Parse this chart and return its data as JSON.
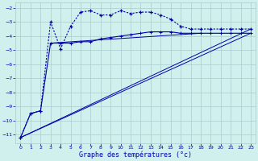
{
  "bg_color": "#d0f0ee",
  "grid_color": "#aacccc",
  "line_color": "#0000aa",
  "xlabel": "Graphe des températures (°c)",
  "xlim": [
    -0.5,
    23.5
  ],
  "ylim": [
    -11.6,
    -1.6
  ],
  "yticks": [
    -11,
    -10,
    -9,
    -8,
    -7,
    -6,
    -5,
    -4,
    -3,
    -2
  ],
  "xticks": [
    0,
    1,
    2,
    3,
    4,
    5,
    6,
    7,
    8,
    9,
    10,
    11,
    12,
    13,
    14,
    15,
    16,
    17,
    18,
    19,
    20,
    21,
    22,
    23
  ],
  "line1_x": [
    0,
    1,
    2,
    3,
    4,
    5,
    6,
    7,
    8,
    9,
    10,
    11,
    12,
    13,
    14,
    15,
    16,
    17,
    18,
    19,
    20,
    21,
    22,
    23
  ],
  "line1_y": [
    -11.2,
    -9.5,
    -9.3,
    -3.0,
    -4.9,
    -3.3,
    -2.3,
    -2.2,
    -2.5,
    -2.5,
    -2.2,
    -2.4,
    -2.3,
    -2.3,
    -2.5,
    -2.8,
    -3.3,
    -3.5,
    -3.5,
    -3.5,
    -3.5,
    -3.5,
    -3.5,
    -3.5
  ],
  "line2_x": [
    0,
    1,
    2,
    3,
    4,
    5,
    6,
    7,
    8,
    9,
    10,
    11,
    12,
    13,
    14,
    15,
    16,
    17,
    18,
    19,
    20,
    21,
    22,
    23
  ],
  "line2_y": [
    -11.2,
    -9.5,
    -9.3,
    -4.5,
    -4.5,
    -4.5,
    -4.4,
    -4.4,
    -4.2,
    -4.1,
    -4.0,
    -3.9,
    -3.8,
    -3.7,
    -3.7,
    -3.7,
    -3.8,
    -3.8,
    -3.8,
    -3.8,
    -3.8,
    -3.8,
    -3.8,
    -3.8
  ],
  "line3_x": [
    0,
    23
  ],
  "line3_y": [
    -11.2,
    -3.5
  ],
  "line4_x": [
    0,
    23
  ],
  "line4_y": [
    -11.2,
    -3.8
  ],
  "line5_x": [
    3,
    18
  ],
  "line5_y": [
    -4.5,
    -3.8
  ]
}
